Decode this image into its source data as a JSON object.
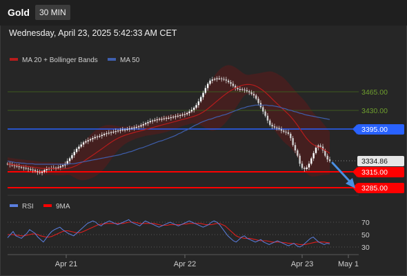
{
  "header": {
    "symbol": "Gold",
    "timeframe": "30 MIN",
    "datetime": "Wednesday, April 23, 2025 5:42:33 AM CET"
  },
  "legend_main": {
    "ma20_bb": "MA 20 + Bollinger Bands",
    "ma50": "MA 50"
  },
  "legend_rsi": {
    "rsi": "RSI",
    "ma9": "9MA"
  },
  "colors": {
    "candle": "#ffffff",
    "ma20": "#b71c1c",
    "ma50": "#3f5fae",
    "resistance_green": "#3d5a1e",
    "support_red": "#ff0000",
    "blue_level": "#2962ff",
    "rsi": "#5b7fe0",
    "arrow": "#4a90e2"
  },
  "chart_data": {
    "type": "line",
    "title": "Gold",
    "x_ticks": [
      "Apr 21",
      "Apr 22",
      "Apr 23",
      "May 1"
    ],
    "price_levels": [
      {
        "value": 3465.0,
        "label": "3465.00",
        "style": "green"
      },
      {
        "value": 3430.0,
        "label": "3430.00",
        "style": "green"
      },
      {
        "value": 3395.0,
        "label": "3395.00",
        "style": "blue"
      },
      {
        "value": 3334.86,
        "label": "3334.86",
        "style": "current"
      },
      {
        "value": 3315.0,
        "label": "3315.00",
        "style": "red"
      },
      {
        "value": 3285.0,
        "label": "3285.00",
        "style": "red"
      }
    ],
    "price_series": [
      3330,
      3328,
      3327,
      3326,
      3325,
      3324,
      3323,
      3322,
      3321,
      3320,
      3319,
      3318,
      3316,
      3314,
      3313,
      3315,
      3318,
      3320,
      3321,
      3322,
      3322,
      3322,
      3323,
      3325,
      3327,
      3330,
      3335,
      3340,
      3346,
      3352,
      3358,
      3362,
      3366,
      3370,
      3372,
      3374,
      3376,
      3378,
      3380,
      3381,
      3382,
      3384,
      3386,
      3387,
      3388,
      3389,
      3390,
      3391,
      3392,
      3393,
      3394,
      3394,
      3395,
      3396,
      3397,
      3398,
      3399,
      3400,
      3402,
      3404,
      3406,
      3408,
      3410,
      3411,
      3412,
      3413,
      3414,
      3414,
      3415,
      3416,
      3416,
      3417,
      3418,
      3419,
      3420,
      3421,
      3422,
      3423,
      3425,
      3428,
      3431,
      3435,
      3440,
      3447,
      3455,
      3463,
      3472,
      3480,
      3486,
      3488,
      3489,
      3490,
      3490,
      3489,
      3488,
      3486,
      3483,
      3480,
      3476,
      3472,
      3470,
      3470,
      3469,
      3468,
      3466,
      3464,
      3461,
      3458,
      3452,
      3444,
      3436,
      3428,
      3420,
      3411,
      3403,
      3400,
      3398,
      3397,
      3395,
      3392,
      3390,
      3389,
      3386,
      3378,
      3365,
      3355,
      3345,
      3330,
      3322,
      3320,
      3323,
      3330,
      3340,
      3350,
      3360,
      3364,
      3362,
      3355,
      3345,
      3338,
      3335
    ],
    "ma50_series": [
      3335,
      3334,
      3333,
      3332,
      3332,
      3331,
      3331,
      3330,
      3330,
      3330,
      3329,
      3329,
      3329,
      3329,
      3329,
      3329,
      3329,
      3329,
      3329,
      3329,
      3329,
      3329,
      3329,
      3330,
      3330,
      3331,
      3332,
      3333,
      3334,
      3335,
      3336,
      3337,
      3338,
      3339,
      3340,
      3341,
      3342,
      3343,
      3344,
      3345,
      3346,
      3347,
      3349,
      3350,
      3352,
      3353,
      3355,
      3357,
      3359,
      3360,
      3362,
      3364,
      3366,
      3368,
      3370,
      3372,
      3373,
      3375,
      3377,
      3379,
      3381,
      3383,
      3386,
      3388,
      3391,
      3393,
      3396,
      3399,
      3402,
      3404,
      3407,
      3409,
      3411,
      3413,
      3414,
      3416,
      3418,
      3419,
      3421,
      3422,
      3424,
      3426,
      3428,
      3430,
      3432,
      3434,
      3435,
      3437,
      3438,
      3439,
      3440,
      3440,
      3440,
      3440,
      3440,
      3439,
      3439,
      3438,
      3437,
      3436,
      3434,
      3433,
      3431,
      3430,
      3428,
      3427,
      3425,
      3424,
      3422,
      3421,
      3420,
      3419,
      3418,
      3417,
      3416,
      3415,
      3414,
      3413
    ],
    "y_range": [
      3270,
      3510
    ],
    "rsi": {
      "ticks": [
        70,
        50,
        30
      ],
      "rsi_series": [
        45,
        50,
        55,
        48,
        46,
        44,
        48,
        52,
        58,
        55,
        52,
        46,
        42,
        38,
        44,
        50,
        55,
        58,
        60,
        62,
        58,
        55,
        52,
        50,
        48,
        52,
        56,
        60,
        64,
        68,
        70,
        72,
        70,
        66,
        64,
        68,
        70,
        72,
        70,
        68,
        66,
        68,
        70,
        72,
        74,
        70,
        68,
        66,
        64,
        68,
        72,
        70,
        68,
        66,
        64,
        62,
        64,
        66,
        68,
        70,
        68,
        66,
        64,
        66,
        68,
        70,
        72,
        70,
        68,
        66,
        64,
        62,
        64,
        66,
        70,
        72,
        70,
        66,
        60,
        54,
        48,
        44,
        40,
        38,
        42,
        46,
        48,
        44,
        42,
        40,
        38,
        40,
        42,
        38,
        36,
        34,
        36,
        38,
        40,
        38,
        36,
        34,
        32,
        34,
        36,
        32,
        30,
        32,
        36,
        40,
        44,
        46,
        42,
        38,
        36,
        34,
        36,
        35
      ],
      "ma9_series": [
        50,
        50,
        50,
        49,
        49,
        48,
        48,
        49,
        50,
        51,
        51,
        50,
        48,
        47,
        46,
        46,
        47,
        49,
        51,
        53,
        55,
        56,
        56,
        55,
        54,
        53,
        53,
        54,
        56,
        58,
        60,
        62,
        64,
        66,
        67,
        67,
        68,
        68,
        68,
        68,
        68,
        68,
        68,
        69,
        70,
        70,
        70,
        69,
        68,
        68,
        68,
        68,
        68,
        68,
        67,
        66,
        65,
        65,
        65,
        66,
        66,
        66,
        66,
        66,
        67,
        67,
        68,
        68,
        68,
        68,
        68,
        67,
        66,
        66,
        66,
        67,
        68,
        68,
        66,
        64,
        60,
        56,
        52,
        48,
        46,
        45,
        44,
        44,
        44,
        43,
        42,
        41,
        40,
        40,
        40,
        39,
        38,
        38,
        38,
        38,
        37,
        37,
        36,
        36,
        35,
        35,
        34,
        34,
        34,
        35,
        36,
        37,
        38,
        38,
        38,
        38,
        37,
        37
      ]
    }
  }
}
